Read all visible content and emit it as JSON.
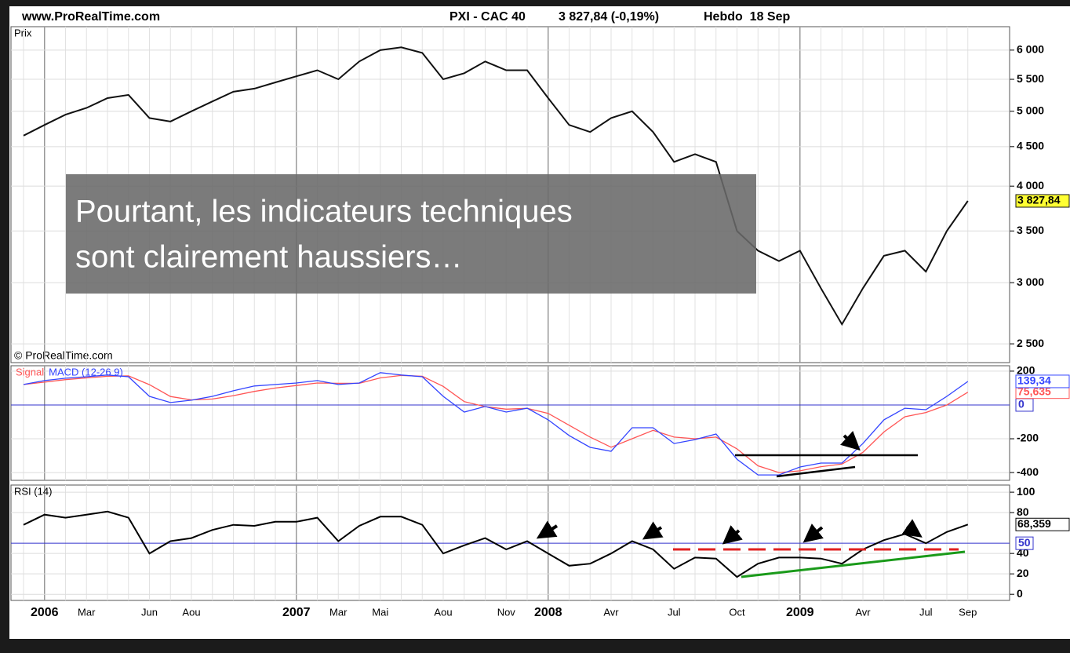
{
  "header": {
    "site": "www.ProRealTime.com",
    "instrument": "PXI - CAC 40",
    "quote": "3 827,84 (-0,19%)",
    "period": "Hebdo  18 Sep"
  },
  "overlay": {
    "lines": [
      "Pourtant, les indicateurs techniques",
      "sont clairement haussiers…"
    ]
  },
  "watermark": "© ProRealTime.com",
  "chart_data": [
    {
      "type": "line",
      "label": "Prix",
      "log_scale": true,
      "color": "#111111",
      "ylim": [
        2364,
        6434
      ],
      "yticks": [
        {
          "value": 6000,
          "label": "6 000"
        },
        {
          "value": 5500,
          "label": "5 500"
        },
        {
          "value": 5000,
          "label": "5 000"
        },
        {
          "value": 4500,
          "label": "4 500"
        },
        {
          "value": 4000,
          "label": "4 000"
        },
        {
          "value": 3500,
          "label": "3 500"
        },
        {
          "value": 3000,
          "label": "3 000"
        },
        {
          "value": 2500,
          "label": "2 500"
        }
      ],
      "values": [
        4650,
        4800,
        4950,
        5050,
        5200,
        5250,
        4900,
        4850,
        5000,
        5150,
        5300,
        5350,
        5450,
        5550,
        5650,
        5500,
        5800,
        6000,
        6050,
        5950,
        5500,
        5600,
        5800,
        5650,
        5650,
        5200,
        4800,
        4700,
        4900,
        5000,
        4700,
        4300,
        4400,
        4300,
        3500,
        3300,
        3200,
        3300,
        2950,
        2650,
        2950,
        3250,
        3300,
        3100,
        3500,
        3827.84
      ],
      "end_label": {
        "value": 3827.84,
        "label": "3 827,84"
      },
      "end_label_bg": "#ffff33"
    },
    {
      "type": "line",
      "ylim": [
        -446,
        232
      ],
      "yticks": [
        200,
        -200,
        -400
      ],
      "ref_line": 0,
      "ref_color": "#3333cc",
      "series": [
        {
          "name": "Signal",
          "color": "#ff5555",
          "values": [
            121,
            135,
            150,
            160,
            170,
            172,
            120,
            50,
            30,
            35,
            55,
            80,
            100,
            115,
            130,
            128,
            128,
            160,
            175,
            170,
            110,
            20,
            -10,
            -25,
            -20,
            -50,
            -120,
            -190,
            -250,
            -200,
            -150,
            -190,
            -200,
            -190,
            -260,
            -360,
            -400,
            -390,
            -365,
            -350,
            -280,
            -160,
            -70,
            -45,
            0,
            75.635
          ],
          "end_label": {
            "value": 75.635,
            "label": "75,635"
          }
        },
        {
          "name": "MACD (12-26 9)",
          "color": "#3344ff",
          "values": [
            121,
            144,
            158,
            167,
            177,
            167,
            51,
            14,
            28,
            51,
            84,
            112,
            121,
            130,
            144,
            121,
            130,
            191,
            177,
            167,
            51,
            -42,
            -9,
            -42,
            -19,
            -88,
            -181,
            -251,
            -274,
            -135,
            -135,
            -228,
            -205,
            -172,
            -321,
            -414,
            -414,
            -367,
            -344,
            -344,
            -228,
            -88,
            -19,
            -28,
            51,
            139.34
          ],
          "end_label": {
            "value": 139.34,
            "label": "139,34"
          }
        }
      ]
    },
    {
      "type": "line",
      "label": "RSI (14)",
      "color": "#000000",
      "ylim": [
        -6,
        107
      ],
      "yticks": [
        100,
        80,
        40,
        20,
        0
      ],
      "ref_line": 50,
      "ref_color": "#3333cc",
      "categories": [
        null,
        "2006",
        null,
        "Mar",
        null,
        null,
        "Jun",
        null,
        "Aou",
        null,
        null,
        null,
        null,
        "2007",
        null,
        "Mar",
        null,
        "Mai",
        null,
        null,
        "Aou",
        null,
        null,
        "Nov",
        null,
        "2008",
        null,
        null,
        "Avr",
        null,
        null,
        "Jul",
        null,
        null,
        "Oct",
        null,
        null,
        "2009",
        null,
        null,
        "Avr",
        null,
        null,
        "Jul",
        null,
        "Sep"
      ],
      "values": [
        68,
        78,
        75,
        78,
        81,
        75,
        40,
        52,
        55,
        63,
        68,
        67,
        71,
        71,
        75,
        52,
        67,
        76,
        76,
        68,
        40,
        48,
        55,
        44,
        52,
        40,
        28,
        30,
        40,
        52,
        44,
        25,
        36,
        35,
        17,
        30,
        36,
        36,
        35,
        30,
        44,
        53,
        59,
        50,
        61,
        68.359
      ],
      "end_label": {
        "value": 68.359,
        "label": "68,359"
      }
    }
  ]
}
